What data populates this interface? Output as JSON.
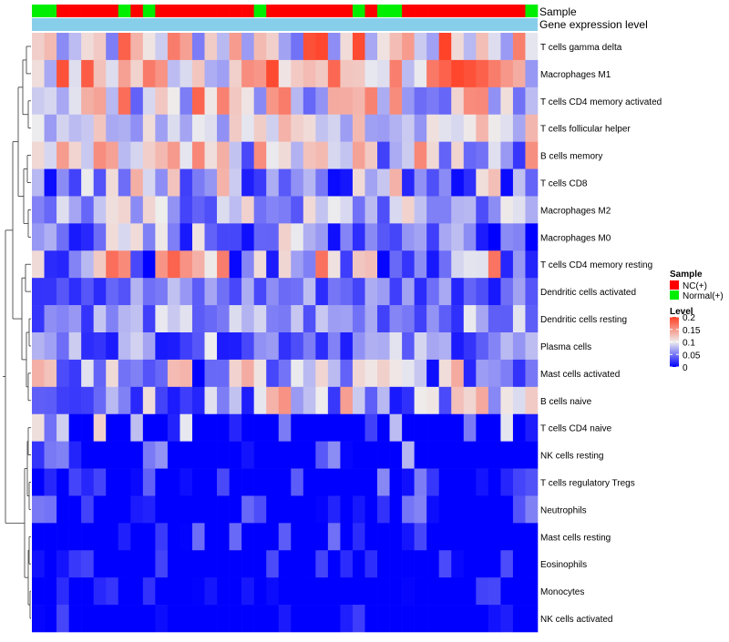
{
  "chart_data": {
    "type": "heatmap",
    "title": "",
    "annotation_rows": [
      "Sample",
      "Gene expression level"
    ],
    "row_labels": [
      "T cells gamma delta",
      "Macrophages M1",
      "T cells CD4 memory activated",
      "T cells follicular helper",
      "B cells memory",
      "T cells CD8",
      "Macrophages M2",
      "Macrophages M0",
      "T cells CD4 memory resting",
      "Dendritic cells activated",
      "Dendritic cells resting",
      "Plasma cells",
      "Mast cells activated",
      "B cells naive",
      "T cells CD4 naive",
      "NK cells resting",
      "T cells regulatory  Tregs",
      "Neutrophils",
      "Mast cells resting",
      "Eosinophils",
      "Monocytes",
      "NK cells activated"
    ],
    "n_columns": 41,
    "sample_groups": [
      "N",
      "N",
      "T",
      "T",
      "T",
      "T",
      "T",
      "N",
      "T",
      "N",
      "T",
      "T",
      "T",
      "T",
      "T",
      "T",
      "T",
      "T",
      "N",
      "T",
      "T",
      "T",
      "T",
      "T",
      "T",
      "T",
      "N",
      "T",
      "N",
      "N",
      "T",
      "T",
      "T",
      "T",
      "T",
      "T",
      "T",
      "T",
      "T",
      "T",
      "N"
    ],
    "legend": {
      "position": "right",
      "sample_title": "Sample",
      "sample_entries": [
        {
          "code": "T",
          "label": "NC(+)",
          "color": "#ff0000"
        },
        {
          "code": "N",
          "label": "Normal(+)",
          "color": "#00ee00"
        }
      ],
      "level_title": "Level",
      "level_ticks": [
        "0.2",
        "0.15",
        "0.1",
        "0.05",
        "0"
      ],
      "level_tick_values": [
        0.2,
        0.15,
        0.1,
        0.05,
        0
      ]
    },
    "color_scale": {
      "low": "#0000ff",
      "mid": "#eeeeee",
      "high": "#ff3f24",
      "range": [
        0,
        0.2
      ],
      "mid_value": 0.1
    },
    "level_bar_color": "#87ceeb",
    "row_ranges": [
      [
        0.04,
        0.2
      ],
      [
        0.06,
        0.2
      ],
      [
        0.04,
        0.18
      ],
      [
        0.06,
        0.14
      ],
      [
        0.02,
        0.16
      ],
      [
        0,
        0.15
      ],
      [
        0.02,
        0.12
      ],
      [
        0,
        0.12
      ],
      [
        0,
        0.18
      ],
      [
        0.01,
        0.09
      ],
      [
        0.02,
        0.1
      ],
      [
        0.01,
        0.1
      ],
      [
        0,
        0.14
      ],
      [
        0,
        0.16
      ],
      [
        0,
        0.12
      ],
      [
        0,
        0.08
      ],
      [
        0,
        0.06
      ],
      [
        0,
        0.06
      ],
      [
        0,
        0.05
      ],
      [
        0,
        0.04
      ],
      [
        0,
        0.03
      ],
      [
        0,
        0.03
      ]
    ],
    "seed": 7
  }
}
